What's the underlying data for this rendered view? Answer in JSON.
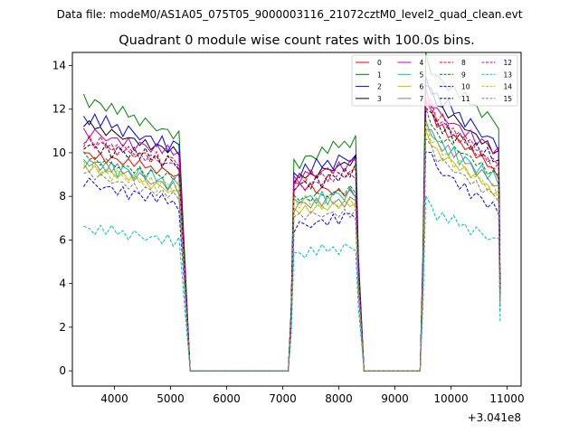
{
  "suptitle": "Data file: modeM0/AS1A05_075T05_9000003116_21072cztM0_level2_quad_clean.evt",
  "chart_data": {
    "type": "line",
    "title": "Quadrant 0 module wise count rates with 100.0s bins.",
    "xlabel": "",
    "ylabel": "",
    "x_offset_label": "+3.041e8",
    "xlim": [
      3250,
      11250
    ],
    "ylim": [
      -0.7,
      14.6
    ],
    "xticks": [
      4000,
      5000,
      6000,
      7000,
      8000,
      9000,
      10000,
      11000
    ],
    "yticks": [
      0,
      2,
      4,
      6,
      8,
      10,
      12,
      14
    ],
    "legend_position": "top-right",
    "legend_columns": 4,
    "gti_segments": [
      [
        3450,
        5150
      ],
      [
        7200,
        8250
      ],
      [
        9550,
        10850
      ]
    ],
    "dip_times": [
      5250,
      5350,
      7100,
      7150,
      8350,
      8450,
      9450,
      9500,
      10875
    ],
    "dip_fractions": [
      0.5,
      0.0,
      0.0,
      0.3,
      0.5,
      0.0,
      0.0,
      0.4,
      0.38
    ],
    "base_noise": [
      0.0,
      0.05,
      -0.2,
      0.15,
      -0.25,
      0.1,
      0.05,
      -0.15,
      0.2,
      -0.1,
      0.25,
      -0.05,
      0.1,
      -0.2,
      0.15,
      0.0,
      -0.15
    ],
    "series": [
      {
        "name": "0",
        "color": "#ff0000",
        "dash": "solid",
        "levels": [
          10.0,
          9.0,
          8.6,
          8.0,
          11.8,
          9.0
        ]
      },
      {
        "name": "1",
        "color": "#008000",
        "dash": "solid",
        "levels": [
          12.5,
          10.8,
          9.5,
          10.6,
          13.8,
          11.3
        ]
      },
      {
        "name": "2",
        "color": "#0000ff",
        "dash": "solid",
        "levels": [
          11.6,
          10.3,
          9.0,
          9.9,
          12.8,
          10.4
        ]
      },
      {
        "name": "3",
        "color": "#000000",
        "dash": "solid",
        "levels": [
          11.3,
          10.0,
          8.7,
          9.7,
          12.6,
          10.0
        ]
      },
      {
        "name": "4",
        "color": "#bf00bf",
        "dash": "solid",
        "levels": [
          11.0,
          9.9,
          8.8,
          9.6,
          12.2,
          10.0
        ]
      },
      {
        "name": "5",
        "color": "#00bfbf",
        "dash": "solid",
        "levels": [
          9.7,
          8.5,
          7.9,
          8.1,
          10.9,
          8.6
        ]
      },
      {
        "name": "6",
        "color": "#bfbf00",
        "dash": "solid",
        "levels": [
          9.4,
          8.2,
          7.4,
          7.6,
          10.4,
          8.1
        ]
      },
      {
        "name": "7",
        "color": "#808080",
        "dash": "solid",
        "levels": [
          9.6,
          8.4,
          7.6,
          7.8,
          10.8,
          8.5
        ]
      },
      {
        "name": "8",
        "color": "#ff0000",
        "dash": "dashed",
        "levels": [
          10.5,
          9.6,
          8.7,
          9.2,
          12.0,
          9.3
        ]
      },
      {
        "name": "9",
        "color": "#008000",
        "dash": "dashed",
        "levels": [
          9.8,
          8.8,
          7.8,
          8.4,
          11.2,
          8.9
        ]
      },
      {
        "name": "10",
        "color": "#0000ff",
        "dash": "dashed",
        "levels": [
          8.7,
          7.6,
          6.6,
          7.2,
          9.7,
          7.3
        ]
      },
      {
        "name": "11",
        "color": "#000000",
        "dash": "dashed",
        "levels": [
          10.4,
          9.5,
          8.5,
          9.1,
          11.7,
          9.5
        ]
      },
      {
        "name": "12",
        "color": "#bf00bf",
        "dash": "dashed",
        "levels": [
          10.6,
          9.4,
          8.4,
          9.0,
          11.9,
          9.4
        ]
      },
      {
        "name": "13",
        "color": "#00bfbf",
        "dash": "dashed",
        "levels": [
          6.5,
          6.0,
          5.3,
          5.7,
          7.3,
          6.0
        ]
      },
      {
        "name": "14",
        "color": "#bfbf00",
        "dash": "dashed",
        "levels": [
          9.3,
          8.4,
          7.6,
          7.8,
          10.5,
          8.2
        ]
      },
      {
        "name": "15",
        "color": "#808080",
        "dash": "dashed",
        "levels": [
          9.1,
          7.9,
          7.1,
          7.3,
          10.1,
          7.9
        ]
      }
    ]
  }
}
